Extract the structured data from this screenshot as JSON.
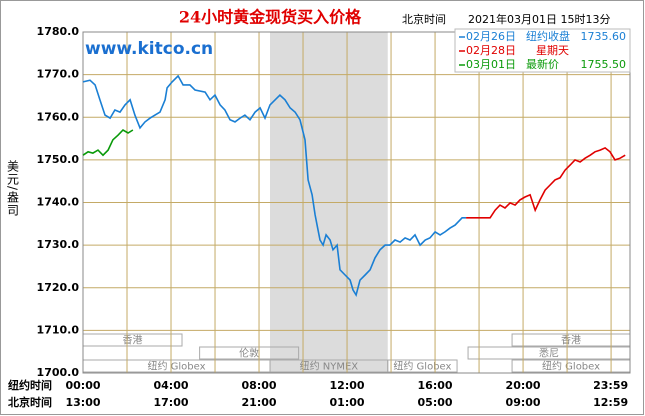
{
  "chart_data": {
    "type": "line",
    "title": "24小时黄金现货买入价格",
    "time_label": "北京时间",
    "timestamp": "2021年03月01日 15时13分",
    "watermark": "www.kitco.cn",
    "y_label": "美元/盎司",
    "x_row_labels": [
      "纽约时间",
      "北京时间"
    ],
    "ylim": [
      1700,
      1780
    ],
    "yticks": [
      {
        "value": 1780,
        "label": "1780.0"
      },
      {
        "value": 1770,
        "label": "1770.0"
      },
      {
        "value": 1760,
        "label": "1760.0"
      },
      {
        "value": 1750,
        "label": "1750.0"
      },
      {
        "value": 1740,
        "label": "1740.0"
      },
      {
        "value": 1730,
        "label": "1730.0"
      },
      {
        "value": 1720,
        "label": "1720.0"
      },
      {
        "value": 1710,
        "label": "1710.0"
      },
      {
        "value": 1700,
        "label": "1700.0"
      }
    ],
    "xlim": [
      0,
      24.86
    ],
    "xticks": [
      {
        "value": 0,
        "label": "00:00"
      },
      {
        "value": 4,
        "label": "04:00"
      },
      {
        "value": 8,
        "label": "08:00"
      },
      {
        "value": 12,
        "label": "12:00"
      },
      {
        "value": 16,
        "label": "16:00"
      },
      {
        "value": 20,
        "label": "20:00"
      },
      {
        "value": 23.98,
        "label": "23:59"
      }
    ],
    "xticks2": [
      {
        "value": 0,
        "label": "13:00"
      },
      {
        "value": 4,
        "label": "17:00"
      },
      {
        "value": 8,
        "label": "21:00"
      },
      {
        "value": 12,
        "label": "01:00"
      },
      {
        "value": 16,
        "label": "05:00"
      },
      {
        "value": 20,
        "label": "09:00"
      },
      {
        "value": 23.98,
        "label": "12:59"
      }
    ],
    "xgrid": [
      2,
      4,
      6,
      8,
      10,
      12,
      14,
      16,
      18,
      20,
      22,
      24
    ],
    "grid": true,
    "highlight": [
      8.5,
      13.85
    ],
    "sessions": [
      {
        "name": "香港",
        "start": 0,
        "end": 4.5
      },
      {
        "name": "香港",
        "start": 19.5,
        "end": 24.86
      },
      {
        "name": "伦敦",
        "start": 5.3,
        "end": 9.8
      },
      {
        "name": "悉尼",
        "start": 17.5,
        "end": 24.86
      },
      {
        "name": "纽约 Globex",
        "start": 0,
        "end": 8.5
      },
      {
        "name": "纽约 NYMEX",
        "start": 8.5,
        "end": 13.85
      },
      {
        "name": "纽约 Globex",
        "start": 13.85,
        "end": 17
      },
      {
        "name": "纽约 Globex",
        "start": 19.5,
        "end": 24.86
      }
    ],
    "series": [
      {
        "name": "02月26日",
        "color": "#1a7fd4",
        "note": "纽约收盘",
        "note_value": 1735.6,
        "note_value_label": "1735.60",
        "x": [
          0,
          0.32,
          0.55,
          0.77,
          1.0,
          1.23,
          1.45,
          1.68,
          1.91,
          2.14,
          2.36,
          2.59,
          2.82,
          3.05,
          3.27,
          3.5,
          3.73,
          3.82,
          4.05,
          4.32,
          4.55,
          4.86,
          5.09,
          5.55,
          5.77,
          6.0,
          6.23,
          6.45,
          6.68,
          6.91,
          7.14,
          7.36,
          7.59,
          7.82,
          8.05,
          8.27,
          8.5,
          8.95,
          9.18,
          9.41,
          9.64,
          9.86,
          10.09,
          10.23,
          10.41,
          10.55,
          10.68,
          10.77,
          10.91,
          11.05,
          11.23,
          11.36,
          11.55,
          11.68,
          11.91,
          12.14,
          12.27,
          12.41,
          12.59,
          12.82,
          13.05,
          13.27,
          13.5,
          13.73,
          13.95,
          14.18,
          14.41,
          14.64,
          14.86,
          15.09,
          15.32,
          15.55,
          15.77,
          16.0,
          16.23,
          16.45,
          16.68,
          16.91,
          17.23,
          17.41
        ],
        "values": [
          1768.3,
          1768.7,
          1767.6,
          1764.1,
          1760.5,
          1759.8,
          1761.7,
          1761.2,
          1762.9,
          1764.1,
          1760.5,
          1757.5,
          1758.9,
          1759.8,
          1760.5,
          1761.2,
          1764.1,
          1766.9,
          1768.3,
          1769.7,
          1767.6,
          1767.6,
          1766.4,
          1765.9,
          1764.1,
          1765.2,
          1762.9,
          1761.7,
          1759.4,
          1758.9,
          1759.8,
          1760.5,
          1759.4,
          1761.2,
          1762.2,
          1759.8,
          1762.9,
          1765.2,
          1764.1,
          1762.2,
          1761.2,
          1759.4,
          1754.7,
          1745.3,
          1741.8,
          1737.1,
          1733.6,
          1731.2,
          1730.0,
          1732.4,
          1731.2,
          1728.9,
          1730.0,
          1724.2,
          1723.0,
          1721.8,
          1719.5,
          1718.3,
          1721.8,
          1723.0,
          1724.2,
          1727.0,
          1728.9,
          1730.0,
          1730.0,
          1731.2,
          1730.7,
          1731.7,
          1731.2,
          1732.4,
          1730.0,
          1731.2,
          1731.7,
          1733.1,
          1732.4,
          1733.1,
          1734.0,
          1734.7,
          1736.4,
          1736.4
        ]
      },
      {
        "name": "02月28日",
        "color": "#e00000",
        "note": "星期天",
        "x": [
          17.41,
          18.5,
          18.73,
          18.95,
          19.18,
          19.41,
          19.64,
          19.86,
          20.09,
          20.32,
          20.55,
          20.77,
          21.0,
          21.23,
          21.45,
          21.68,
          21.91,
          22.14,
          22.36,
          22.59,
          22.82,
          23.05,
          23.27,
          23.5,
          23.73,
          23.95,
          24.18,
          24.41,
          24.64
        ],
        "values": [
          1736.4,
          1736.4,
          1738.2,
          1739.4,
          1738.7,
          1739.9,
          1739.4,
          1740.6,
          1741.3,
          1741.8,
          1738.2,
          1740.6,
          1742.9,
          1744.1,
          1745.3,
          1745.8,
          1747.6,
          1748.8,
          1750.0,
          1749.5,
          1750.4,
          1751.1,
          1751.9,
          1752.3,
          1752.8,
          1751.9,
          1750.0,
          1750.4,
          1751.1
        ]
      },
      {
        "name": "03月01日",
        "color": "#0a9a0a",
        "note": "最新价",
        "note_value": 1755.5,
        "note_value_label": "1755.50",
        "x": [
          0,
          0.23,
          0.45,
          0.68,
          0.91,
          1.14,
          1.36,
          1.59,
          1.82,
          2.05,
          2.27
        ],
        "values": [
          1751.1,
          1751.9,
          1751.6,
          1752.3,
          1751.1,
          1752.3,
          1754.7,
          1755.8,
          1757.0,
          1756.3,
          1757.0
        ]
      }
    ]
  }
}
